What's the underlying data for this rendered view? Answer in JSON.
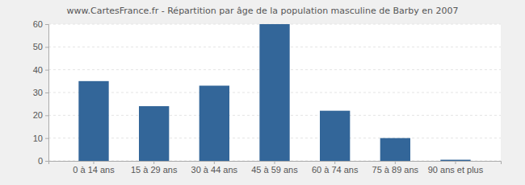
{
  "chart_data": {
    "type": "bar",
    "title": "www.CartesFrance.fr - Répartition par âge de la population masculine de Barby en 2007",
    "categories": [
      "0 à 14 ans",
      "15 à 29 ans",
      "30 à 44 ans",
      "45 à 59 ans",
      "60 à 74 ans",
      "75 à 89 ans",
      "90 ans et plus"
    ],
    "values": [
      35,
      24,
      33,
      60,
      22,
      10,
      0.5
    ],
    "color": "#336699",
    "ylim": [
      0,
      60
    ],
    "yticks": [
      0,
      10,
      20,
      30,
      40,
      50,
      60
    ],
    "grid": true
  }
}
